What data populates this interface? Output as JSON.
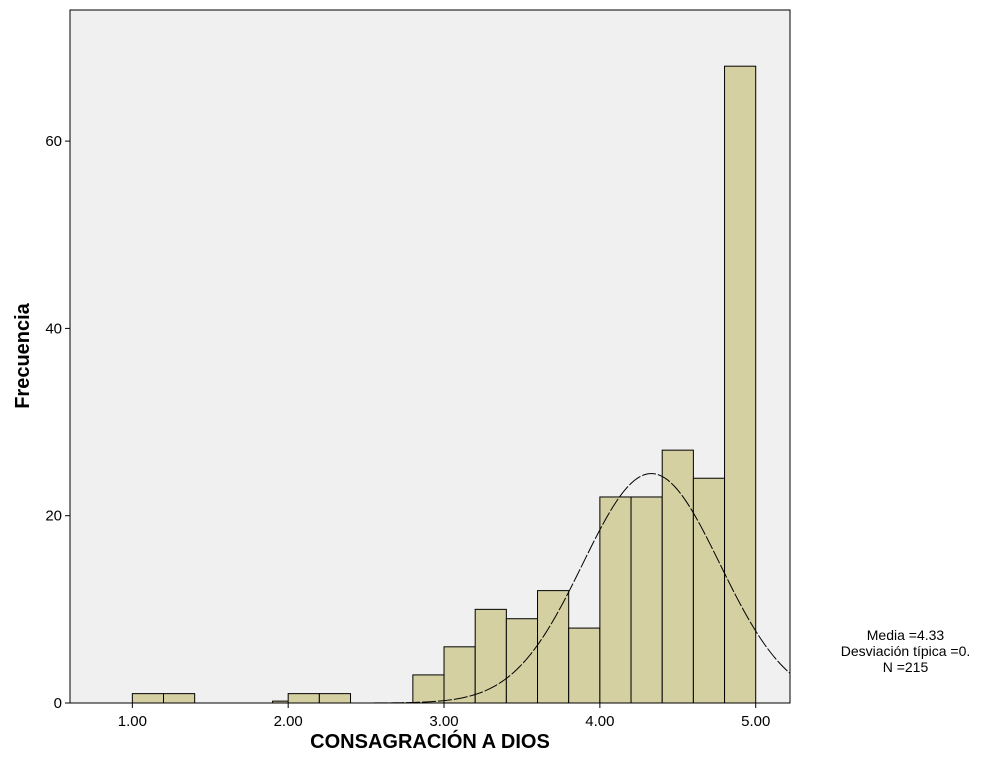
{
  "chart_data": {
    "type": "bar",
    "subtype": "histogram",
    "xlabel": "CONSAGRACIÓN A DIOS",
    "ylabel": "Frecuencia",
    "xlim": [
      0.6,
      5.22
    ],
    "ylim": [
      0,
      74
    ],
    "x_ticks": [
      {
        "value": 1.0,
        "label": "1.00"
      },
      {
        "value": 2.0,
        "label": "2.00"
      },
      {
        "value": 3.0,
        "label": "3.00"
      },
      {
        "value": 4.0,
        "label": "4.00"
      },
      {
        "value": 5.0,
        "label": "5.00"
      }
    ],
    "y_ticks": [
      {
        "value": 0,
        "label": "0"
      },
      {
        "value": 20,
        "label": "20"
      },
      {
        "value": 40,
        "label": "40"
      },
      {
        "value": 60,
        "label": "60"
      }
    ],
    "bin_width": 0.2,
    "bins": [
      {
        "start": 1.0,
        "count": 1
      },
      {
        "start": 1.2,
        "count": 1
      },
      {
        "start": 1.9,
        "count": 0.2
      },
      {
        "start": 2.0,
        "count": 1
      },
      {
        "start": 2.2,
        "count": 1
      },
      {
        "start": 2.8,
        "count": 3
      },
      {
        "start": 3.0,
        "count": 6
      },
      {
        "start": 3.2,
        "count": 10
      },
      {
        "start": 3.4,
        "count": 9
      },
      {
        "start": 3.6,
        "count": 12
      },
      {
        "start": 3.8,
        "count": 8
      },
      {
        "start": 4.0,
        "count": 22
      },
      {
        "start": 4.2,
        "count": 22
      },
      {
        "start": 4.4,
        "count": 27
      },
      {
        "start": 4.6,
        "count": 24
      },
      {
        "start": 4.8,
        "count": 68
      }
    ],
    "normal_curve": {
      "mean": 4.33,
      "peak": 24.5,
      "sd_visual": 0.44
    },
    "grid": false,
    "legend": "none",
    "colors": {
      "plot_background": "#f0f0f0",
      "bar_fill": "#d4d0a2",
      "bar_stroke": "#000000"
    }
  },
  "stats": {
    "media": "Media =4.33",
    "desviacion": "Desviación típica =0.",
    "n": "N =215"
  }
}
